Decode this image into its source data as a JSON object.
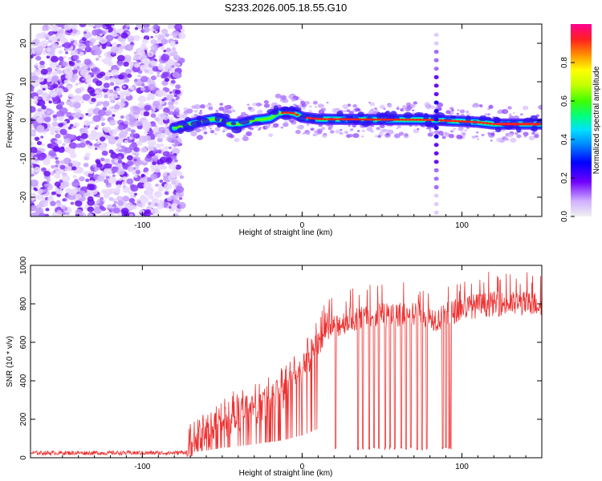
{
  "title": "S233.2026.005.18.55.G10",
  "chart_data": [
    {
      "type": "heatmap",
      "xlabel": "Height of straight line (km)",
      "ylabel": "Frequency (Hz)",
      "xlim": [
        -170,
        150
      ],
      "ylim": [
        -25,
        25
      ],
      "xticks": [
        -100,
        0,
        100
      ],
      "yticks": [
        20,
        10,
        0,
        -10,
        -20
      ],
      "noise_region_x": [
        -170,
        -80
      ],
      "ridge": [
        [
          -80,
          -2
        ],
        [
          -75,
          -1.5
        ],
        [
          -70,
          -1
        ],
        [
          -65,
          -0.5
        ],
        [
          -60,
          0
        ],
        [
          -55,
          0.3
        ],
        [
          -50,
          0
        ],
        [
          -45,
          -1
        ],
        [
          -40,
          -1
        ],
        [
          -35,
          -0.5
        ],
        [
          -30,
          0
        ],
        [
          -25,
          0.2
        ],
        [
          -20,
          0.5
        ],
        [
          -15,
          1.8
        ],
        [
          -10,
          2
        ],
        [
          -5,
          1.8
        ],
        [
          0,
          0.8
        ],
        [
          10,
          0.3
        ],
        [
          40,
          0.2
        ],
        [
          80,
          0.1
        ],
        [
          85,
          0
        ],
        [
          110,
          -0.5
        ],
        [
          120,
          -1
        ],
        [
          150,
          -1
        ]
      ],
      "spike_x": 84,
      "colorbar": {
        "label": "Normalized spectral amplitude",
        "min": 0.0,
        "max": 1.0,
        "ticks": [
          0.0,
          0.2,
          0.4,
          0.6,
          0.8
        ]
      }
    },
    {
      "type": "line",
      "xlabel": "Height of straight line (km)",
      "ylabel": "SNR (10 * v/v)",
      "xlim": [
        -170,
        150
      ],
      "ylim": [
        0,
        1000
      ],
      "xticks": [
        -100,
        0,
        100
      ],
      "yticks": [
        0,
        200,
        400,
        600,
        800,
        1000
      ],
      "color": "#ee3333",
      "trend": [
        [
          -170,
          25
        ],
        [
          -80,
          25
        ],
        [
          -72,
          30
        ],
        [
          -68,
          120
        ],
        [
          -60,
          150
        ],
        [
          -50,
          210
        ],
        [
          -40,
          240
        ],
        [
          -30,
          280
        ],
        [
          -20,
          330
        ],
        [
          -10,
          380
        ],
        [
          0,
          470
        ],
        [
          10,
          600
        ],
        [
          20,
          680
        ],
        [
          30,
          720
        ],
        [
          50,
          740
        ],
        [
          70,
          750
        ],
        [
          85,
          720
        ],
        [
          100,
          780
        ],
        [
          120,
          800
        ],
        [
          150,
          800
        ]
      ],
      "dropouts": [
        21,
        35,
        38,
        42,
        45,
        48,
        52,
        55,
        58,
        62,
        65,
        68,
        72,
        75,
        78,
        88,
        90,
        92,
        93
      ]
    }
  ]
}
